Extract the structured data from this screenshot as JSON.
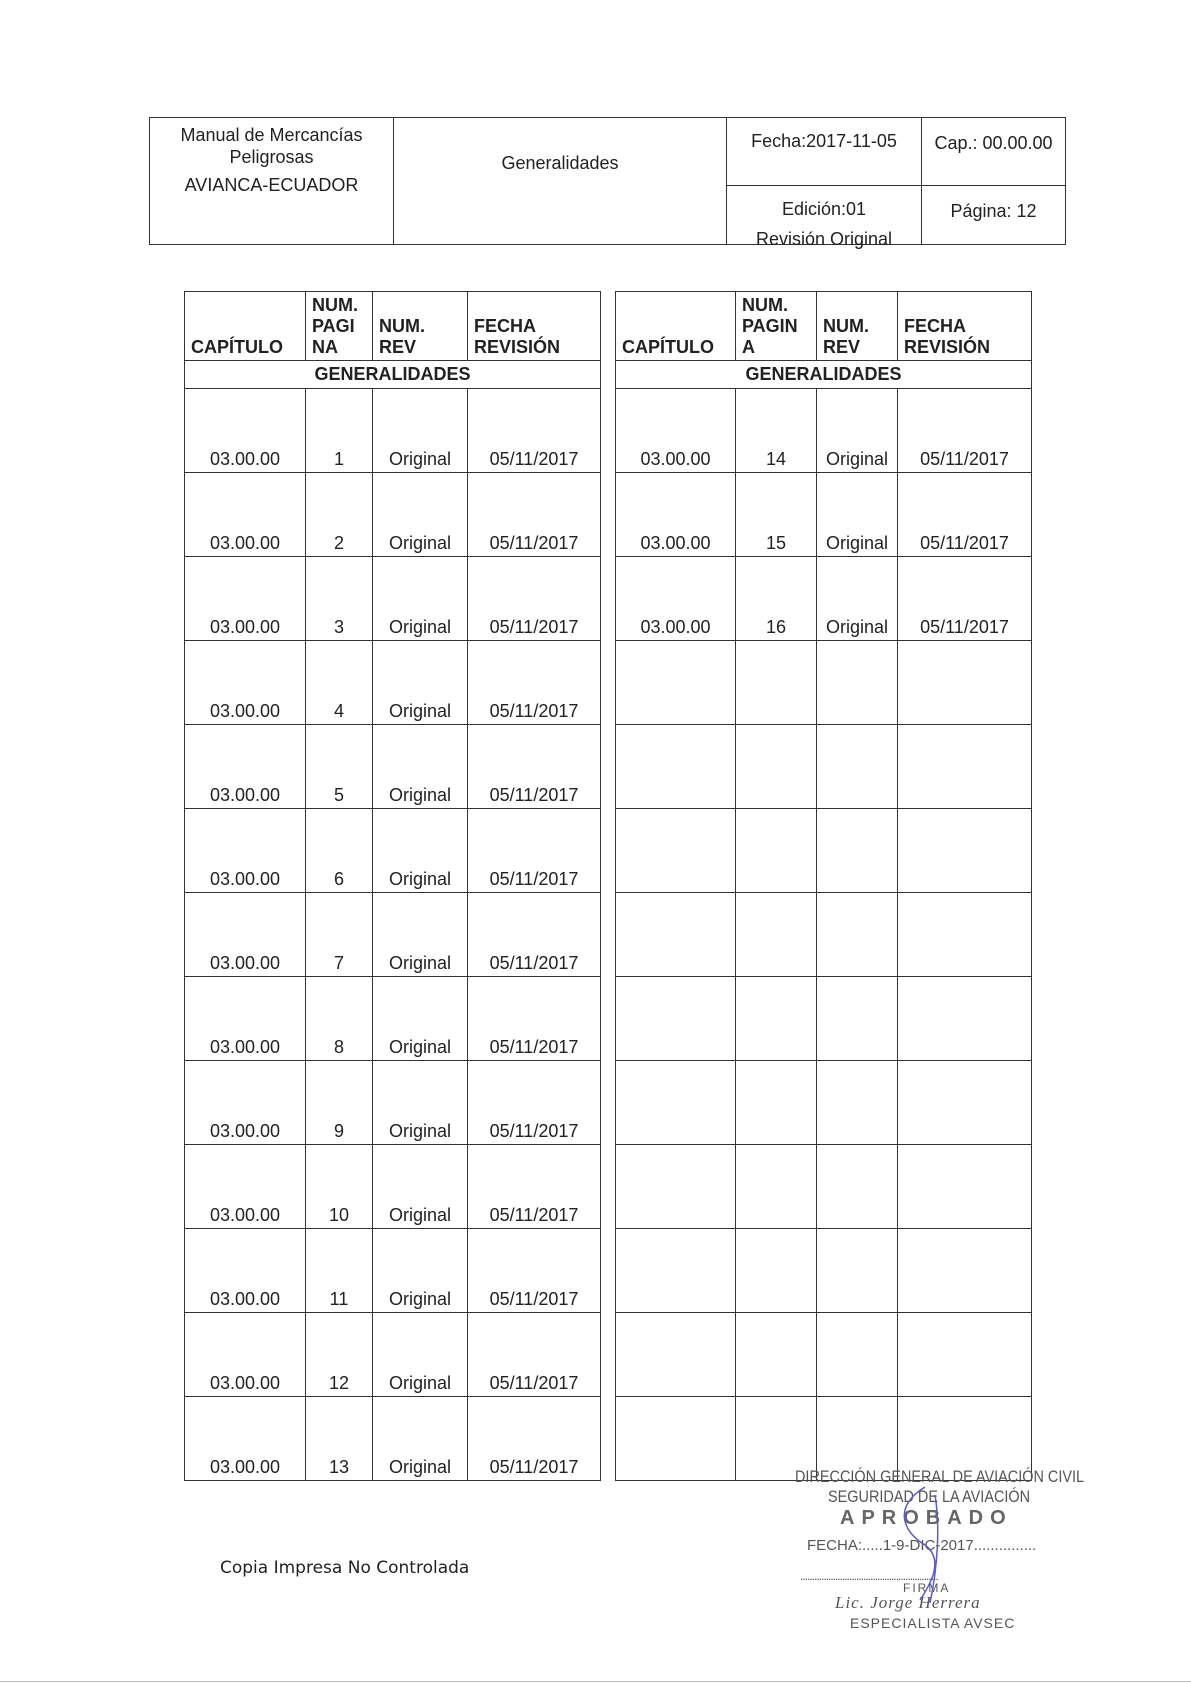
{
  "header": {
    "manual_line1": "Manual de Mercancías",
    "manual_line2": "Peligrosas",
    "company": "AVIANCA-ECUADOR",
    "section": "Generalidades",
    "fecha": "Fecha:2017-11-05",
    "cap": "Cap.: 00.00.00",
    "edicion": "Edición:01",
    "revision": "Revisión Original",
    "pagina": "Página: 12"
  },
  "left_table": {
    "headers": {
      "capitulo": "CAPÍTULO",
      "num_pagina": "NUM. PAGI NA",
      "num_rev": "NUM. REV",
      "fecha_revision": "FECHA REVISIÓN"
    },
    "section": "GENERALIDADES",
    "rows": [
      [
        "03.00.00",
        "1",
        "Original",
        "05/11/2017"
      ],
      [
        "03.00.00",
        "2",
        "Original",
        "05/11/2017"
      ],
      [
        "03.00.00",
        "3",
        "Original",
        "05/11/2017"
      ],
      [
        "03.00.00",
        "4",
        "Original",
        "05/11/2017"
      ],
      [
        "03.00.00",
        "5",
        "Original",
        "05/11/2017"
      ],
      [
        "03.00.00",
        "6",
        "Original",
        "05/11/2017"
      ],
      [
        "03.00.00",
        "7",
        "Original",
        "05/11/2017"
      ],
      [
        "03.00.00",
        "8",
        "Original",
        "05/11/2017"
      ],
      [
        "03.00.00",
        "9",
        "Original",
        "05/11/2017"
      ],
      [
        "03.00.00",
        "10",
        "Original",
        "05/11/2017"
      ],
      [
        "03.00.00",
        "11",
        "Original",
        "05/11/2017"
      ],
      [
        "03.00.00",
        "12",
        "Original",
        "05/11/2017"
      ],
      [
        "03.00.00",
        "13",
        "Original",
        "05/11/2017"
      ]
    ]
  },
  "right_table": {
    "headers": {
      "capitulo": "CAPÍTULO",
      "num_pagina": "NUM. PAGIN A",
      "num_rev": "NUM. REV",
      "fecha_revision": "FECHA REVISIÓN"
    },
    "section": "GENERALIDADES",
    "rows": [
      [
        "03.00.00",
        "14",
        "Original",
        "05/11/2017"
      ],
      [
        "03.00.00",
        "15",
        "Original",
        "05/11/2017"
      ],
      [
        "03.00.00",
        "16",
        "Original",
        "05/11/2017"
      ],
      [
        "",
        "",
        "",
        ""
      ],
      [
        "",
        "",
        "",
        ""
      ],
      [
        "",
        "",
        "",
        ""
      ],
      [
        "",
        "",
        "",
        ""
      ],
      [
        "",
        "",
        "",
        ""
      ],
      [
        "",
        "",
        "",
        ""
      ],
      [
        "",
        "",
        "",
        ""
      ],
      [
        "",
        "",
        "",
        ""
      ],
      [
        "",
        "",
        "",
        ""
      ],
      [
        "",
        "",
        "",
        ""
      ]
    ]
  },
  "footer": {
    "text": "Copia Impresa No Controlada"
  },
  "stamp": {
    "line1": "DIRECCIÓN GENERAL DE AVIACIÓN CIVIL",
    "line2": "SEGURIDAD DE LA AVIACIÓN",
    "line3": "APROBADO",
    "fecha": "FECHA:.....1-9-DIC-2017...............",
    "firma_line": "...........................................................",
    "firma": "FIRMA",
    "name": "Lic. Jorge Herrera",
    "title": "ESPECIALISTA AVSEC"
  }
}
